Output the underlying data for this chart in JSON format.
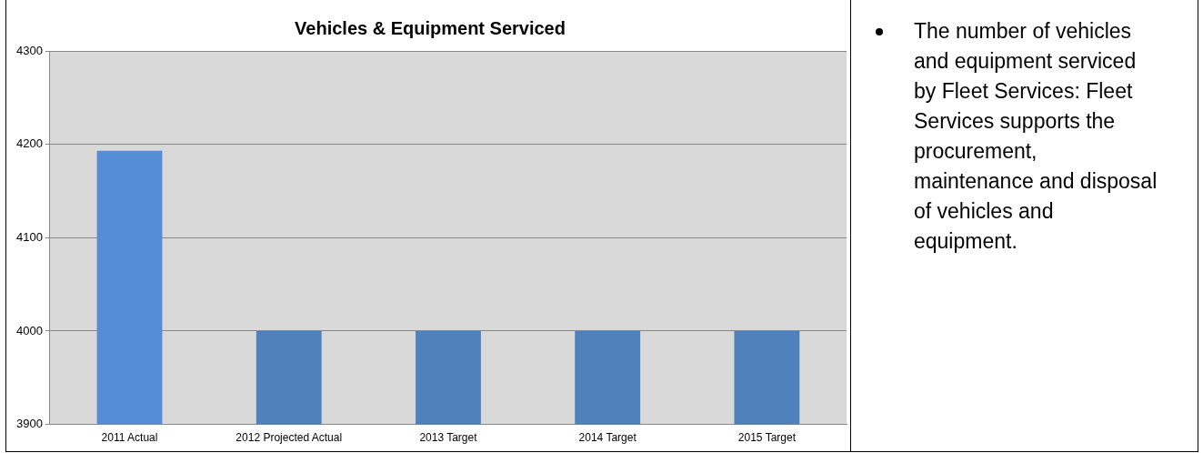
{
  "chart_data": {
    "type": "bar",
    "title": "Vehicles & Equipment Serviced",
    "categories": [
      "2011 Actual",
      "2012 Projected Actual",
      "2013 Target",
      "2014 Target",
      "2015 Target"
    ],
    "values": [
      4193,
      4000,
      4000,
      4000,
      4000
    ],
    "colors": [
      "#558ed5",
      "#4f81bd",
      "#4f81bd",
      "#4f81bd",
      "#4f81bd"
    ],
    "ylim": [
      3900,
      4300
    ],
    "yticks": [
      3900,
      4000,
      4100,
      4200,
      4300
    ],
    "grid": "y",
    "legend": false,
    "annotations": [
      "The number of vehicles and equipment serviced by Fleet Services:  Fleet Services supports the procurement, maintenance and disposal of vehicles and equipment."
    ]
  }
}
